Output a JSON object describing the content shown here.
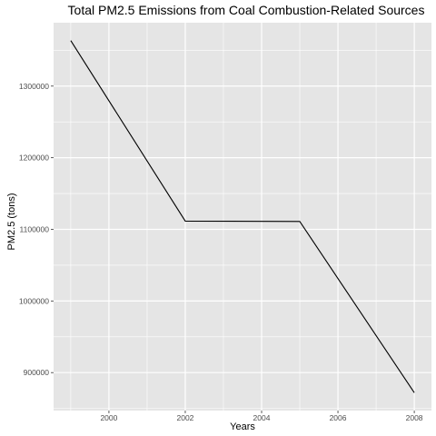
{
  "chart_data": {
    "type": "line",
    "title": "Total PM2.5 Emissions from Coal Combustion-Related Sources",
    "xlabel": "Years",
    "ylabel": "PM2.5 (tons)",
    "x": [
      1999,
      2002,
      2005,
      2008
    ],
    "series": [
      {
        "values": [
          1363500,
          1111500,
          1111000,
          872000
        ],
        "color": "#000000"
      }
    ],
    "xlim": [
      1998.55,
      2008.45
    ],
    "ylim": [
      847000,
      1388500
    ],
    "x_ticks": [
      2000,
      2002,
      2004,
      2006,
      2008
    ],
    "x_tick_labels": [
      "2000",
      "2002",
      "2004",
      "2006",
      "2008"
    ],
    "y_ticks": [
      900000,
      1000000,
      1100000,
      1200000,
      1300000
    ],
    "y_tick_labels": [
      "900000",
      "1000000",
      "1100000",
      "1200000",
      "1300000"
    ],
    "grid": true,
    "panel_color": "#e5e5e5",
    "grid_color": "#ffffff"
  }
}
